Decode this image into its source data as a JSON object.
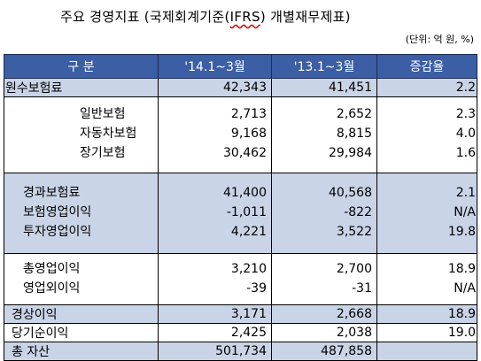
{
  "title_prefix": "주요 경영지표 (국제회계기준(",
  "title_ifrs": "IFRS",
  "title_suffix": ") 개별재무제표)",
  "unit": "(단위: 억 원, %)",
  "headers": [
    "구  분",
    "'14.1~3월",
    "'13.1~3월",
    "증감율"
  ],
  "rows": {
    "premium": {
      "label": "원수보험료",
      "v14": "42,343",
      "v13": "41,451",
      "rate": "2.2"
    },
    "general": {
      "label": "일반보험",
      "v14": "2,713",
      "v13": "2,652",
      "rate": "2.3"
    },
    "auto": {
      "label": "자동차보험",
      "v14": "9,168",
      "v13": "8,815",
      "rate": "4.0"
    },
    "longterm": {
      "label": "장기보험",
      "v14": "30,462",
      "v13": "29,984",
      "rate": "1.6"
    },
    "earned": {
      "label": "경과보험료",
      "v14": "41,400",
      "v13": "40,568",
      "rate": "2.1"
    },
    "ins_profit": {
      "label": "보험영업이익",
      "v14": "-1,011",
      "v13": "-822",
      "rate": "N/A"
    },
    "inv_profit": {
      "label": "투자영업이익",
      "v14": "4,221",
      "v13": "3,522",
      "rate": "19.8"
    },
    "total_op": {
      "label": "총영업이익",
      "v14": "3,210",
      "v13": "2,700",
      "rate": "18.9"
    },
    "non_op": {
      "label": "영업외이익",
      "v14": "-39",
      "v13": "-31",
      "rate": "N/A"
    },
    "ordinary": {
      "label": "경상이익",
      "v14": "3,171",
      "v13": "2,668",
      "rate": "18.9"
    },
    "net": {
      "label": "당기순이익",
      "v14": "2,425",
      "v13": "2,038",
      "rate": "19.0"
    },
    "assets": {
      "label": "총 자산",
      "v14": "501,734",
      "v13": "487,858",
      "rate": ""
    }
  }
}
